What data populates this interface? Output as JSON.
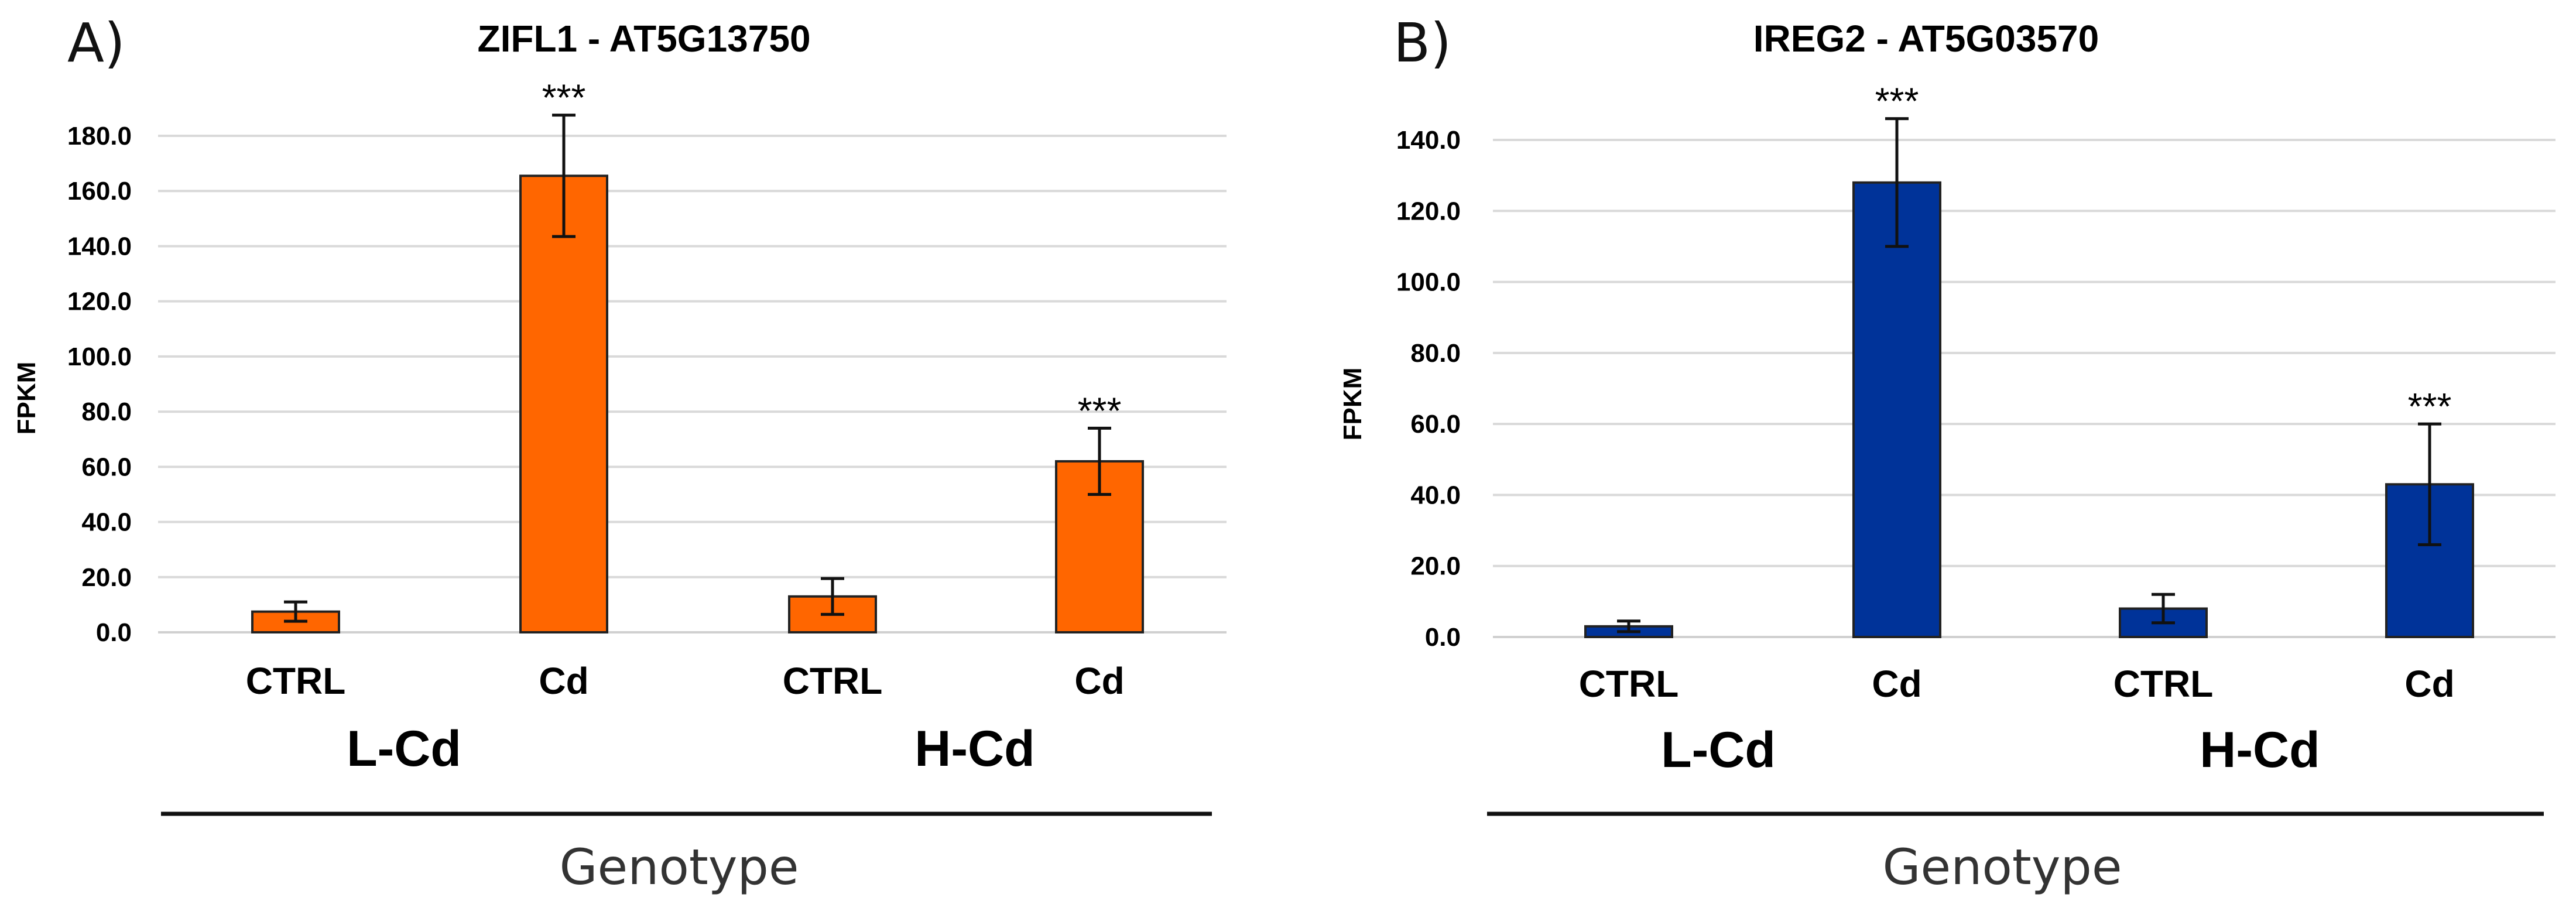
{
  "chart_data": [
    {
      "type": "bar",
      "panel": "A)",
      "title": "ZIFL1 - AT5G13750",
      "ylabel": "FPKM",
      "xlabel": "Genotype",
      "categories": [
        "CTRL",
        "Cd",
        "CTRL",
        "Cd"
      ],
      "groups": [
        {
          "label": "L-Cd"
        },
        {
          "label": "H-Cd"
        }
      ],
      "values": [
        7.5,
        165.5,
        13.0,
        62.0
      ],
      "errors": [
        3.5,
        22.0,
        6.5,
        12.0
      ],
      "significance": [
        "",
        "***",
        "",
        "***"
      ],
      "ylim": [
        0,
        180
      ],
      "yticks": [
        "0.0",
        "20.0",
        "40.0",
        "60.0",
        "80.0",
        "100.0",
        "120.0",
        "140.0",
        "160.0",
        "180.0"
      ],
      "color": "#ff6600",
      "grid": true
    },
    {
      "type": "bar",
      "panel": "B)",
      "title": "IREG2 - AT5G03570",
      "ylabel": "FPKM",
      "xlabel": "Genotype",
      "categories": [
        "CTRL",
        "Cd",
        "CTRL",
        "Cd"
      ],
      "groups": [
        {
          "label": "L-Cd"
        },
        {
          "label": "H-Cd"
        }
      ],
      "values": [
        3.0,
        128.0,
        8.0,
        43.0
      ],
      "errors": [
        1.5,
        18.0,
        4.0,
        17.0
      ],
      "significance": [
        "",
        "***",
        "",
        "***"
      ],
      "ylim": [
        0,
        140
      ],
      "yticks": [
        "0.0",
        "20.0",
        "40.0",
        "60.0",
        "80.0",
        "100.0",
        "120.0",
        "140.0"
      ],
      "color": "#003399",
      "grid": true
    }
  ]
}
